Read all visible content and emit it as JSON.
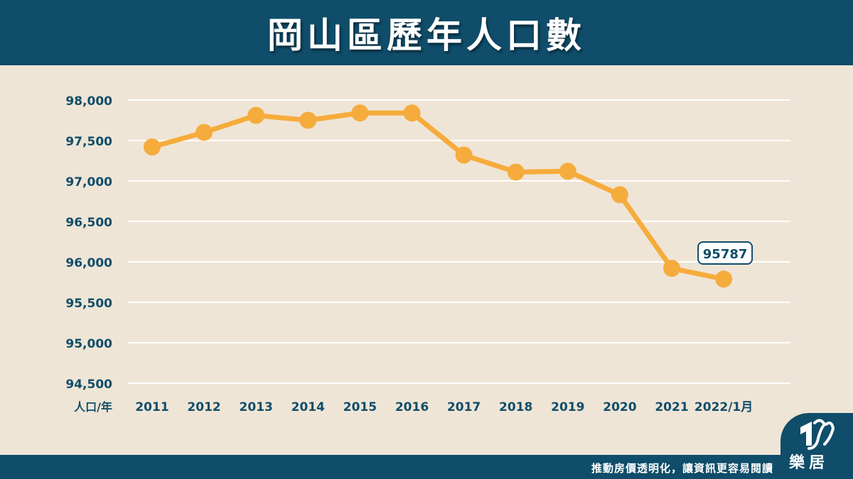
{
  "header": {
    "title": "岡山區歷年人口數"
  },
  "footer": {
    "slogan": "推動房價透明化，讓資訊更容易閱讀"
  },
  "logo": {
    "text": "樂居"
  },
  "colors": {
    "header_bg": "#0f4d6a",
    "background": "#efe5d6",
    "line": "#f6ac3c",
    "tick_text": "#0f4d6a"
  },
  "chart_data": {
    "type": "line",
    "ylabel": "人口/年",
    "categories": [
      "2011",
      "2012",
      "2013",
      "2014",
      "2015",
      "2016",
      "2017",
      "2018",
      "2019",
      "2020",
      "2021",
      "2022/1月"
    ],
    "series": [
      {
        "values": [
          97420,
          97600,
          97810,
          97750,
          97840,
          97840,
          97320,
          97110,
          97120,
          96830,
          95920,
          95787
        ]
      }
    ],
    "ylim": [
      94500,
      98000
    ],
    "yticks": [
      "98,000",
      "97,500",
      "97,000",
      "96,500",
      "96,000",
      "95,500",
      "95,000",
      "94,500"
    ],
    "ytick_values": [
      98000,
      97500,
      97000,
      96500,
      96000,
      95500,
      95000,
      94500
    ],
    "annotation": {
      "category": "2022/1月",
      "text": "95787"
    },
    "grid": true,
    "legend": "none"
  }
}
